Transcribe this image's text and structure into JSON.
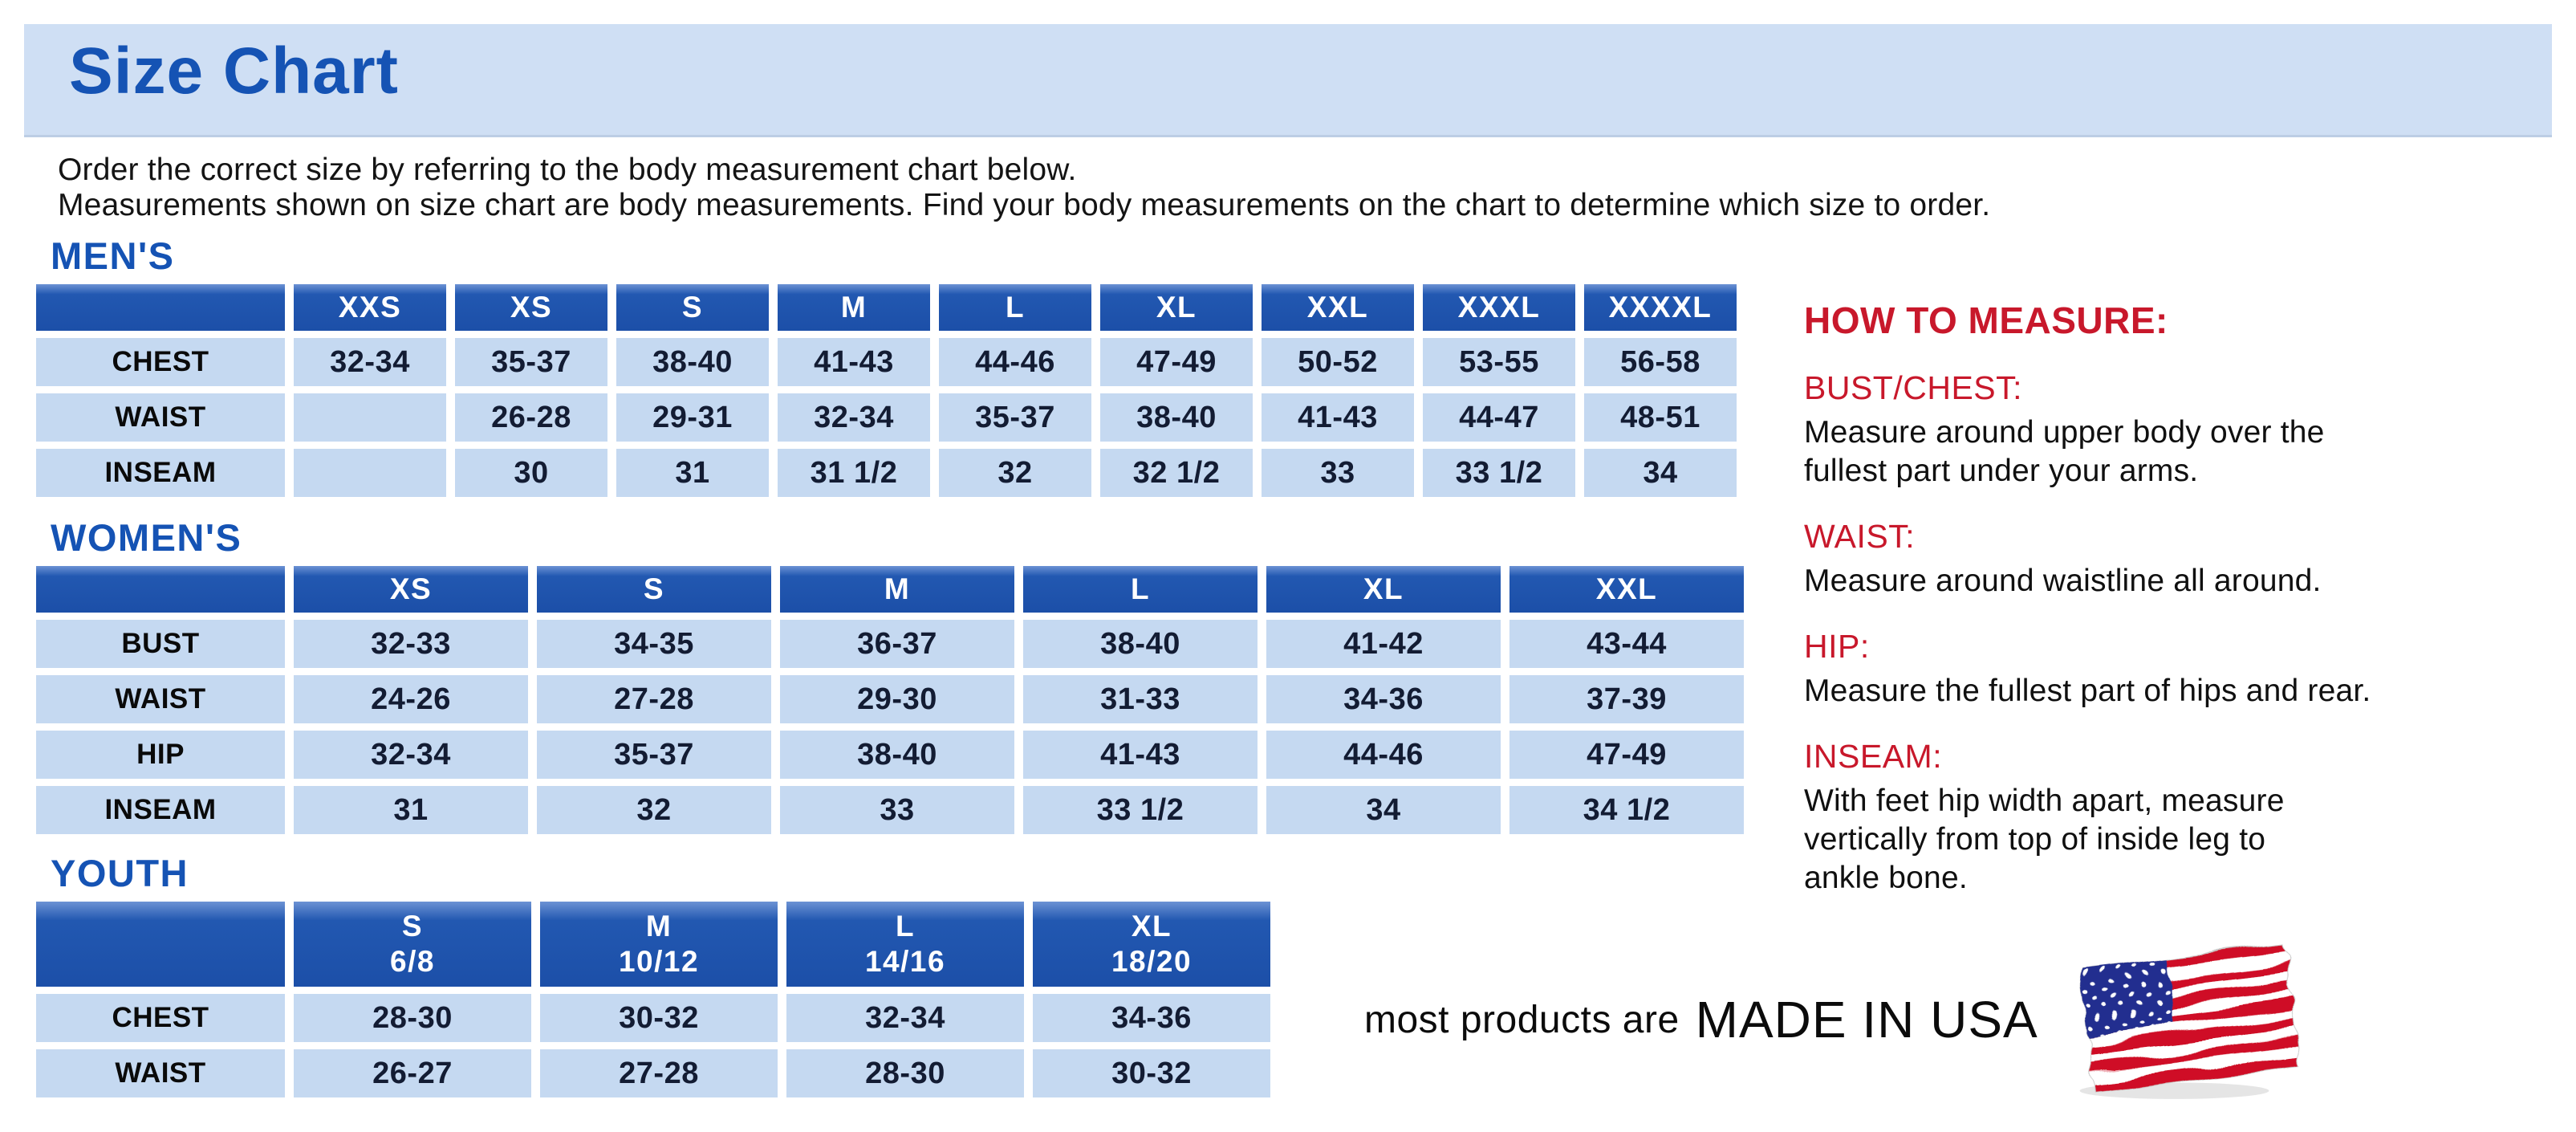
{
  "title": "Size Chart",
  "intro": {
    "line1": "Order the correct size by referring to the body measurement chart below.",
    "line2": "Measurements shown on size chart are body measurements.  Find your body measurements on the chart to determine which size to order."
  },
  "tables": {
    "mens": {
      "label": "MEN'S",
      "columns": [
        "XXS",
        "XS",
        "S",
        "M",
        "L",
        "XL",
        "XXL",
        "XXXL",
        "XXXXL"
      ],
      "rows": [
        {
          "label": "CHEST",
          "values": [
            "32-34",
            "35-37",
            "38-40",
            "41-43",
            "44-46",
            "47-49",
            "50-52",
            "53-55",
            "56-58"
          ]
        },
        {
          "label": "WAIST",
          "values": [
            "",
            "26-28",
            "29-31",
            "32-34",
            "35-37",
            "38-40",
            "41-43",
            "44-47",
            "48-51"
          ]
        },
        {
          "label": "INSEAM",
          "values": [
            "",
            "30",
            "31",
            "31 1/2",
            "32",
            "32 1/2",
            "33",
            "33 1/2",
            "34"
          ]
        }
      ]
    },
    "womens": {
      "label": "WOMEN'S",
      "columns": [
        "XS",
        "S",
        "M",
        "L",
        "XL",
        "XXL"
      ],
      "rows": [
        {
          "label": "BUST",
          "values": [
            "32-33",
            "34-35",
            "36-37",
            "38-40",
            "41-42",
            "43-44"
          ]
        },
        {
          "label": "WAIST",
          "values": [
            "24-26",
            "27-28",
            "29-30",
            "31-33",
            "34-36",
            "37-39"
          ]
        },
        {
          "label": "HIP",
          "values": [
            "32-34",
            "35-37",
            "38-40",
            "41-43",
            "44-46",
            "47-49"
          ]
        },
        {
          "label": "INSEAM",
          "values": [
            "31",
            "32",
            "33",
            "33 1/2",
            "34",
            "34 1/2"
          ]
        }
      ]
    },
    "youth": {
      "label": "YOUTH",
      "columns": [
        "S\n6/8",
        "M\n10/12",
        "L\n14/16",
        "XL\n18/20"
      ],
      "rows": [
        {
          "label": "CHEST",
          "values": [
            "28-30",
            "30-32",
            "32-34",
            "34-36"
          ]
        },
        {
          "label": "WAIST",
          "values": [
            "26-27",
            "27-28",
            "28-30",
            "30-32"
          ]
        }
      ]
    }
  },
  "how_to_measure": {
    "title": "HOW TO MEASURE:",
    "sections": [
      {
        "heading": "BUST/CHEST:",
        "text": "Measure around upper body over the\nfullest part under your arms."
      },
      {
        "heading": "WAIST:",
        "text": "Measure around waistline all around."
      },
      {
        "heading": "HIP:",
        "text": "Measure the fullest part of hips and rear."
      },
      {
        "heading": "INSEAM:",
        "text": "With feet hip width apart, measure\nvertically from top of inside leg to\nankle bone."
      }
    ]
  },
  "footer": {
    "prefix": "most products are",
    "made_in": "MADE IN USA",
    "flag_icon": "us-flag-icon"
  },
  "colors": {
    "banner_background": "#cfdff4",
    "heading_blue": "#1553b4",
    "table_header_blue": "#1d55b0",
    "table_cell_light_blue": "#c5d9f1",
    "accent_red": "#c8182b",
    "body_text": "#101010",
    "flag_red": "#cf1126",
    "flag_blue": "#202e8f"
  }
}
